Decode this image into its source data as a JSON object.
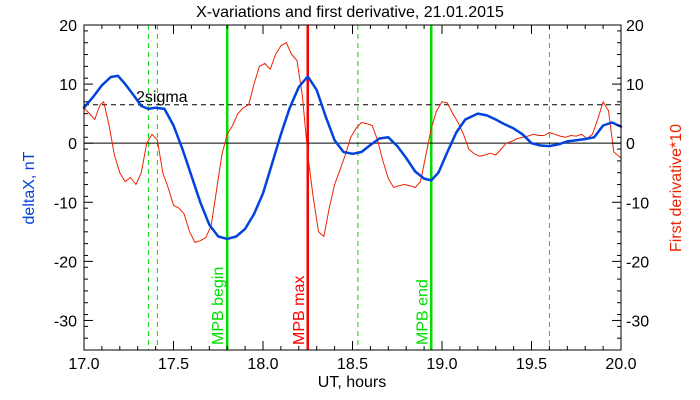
{
  "chart_data": {
    "type": "line",
    "title": "X-variations and first derivative, 21.01.2015",
    "xlabel": "UT, hours",
    "ylabel_left": "deltaX, nT",
    "ylabel_right": "First derivative*10",
    "xlim": [
      17.0,
      20.0
    ],
    "ylim": [
      -35,
      20
    ],
    "x_ticks": [
      17.0,
      17.5,
      18.0,
      18.5,
      19.0,
      19.5,
      20.0
    ],
    "x_tick_labels": [
      "17.0",
      "17.5",
      "18.0",
      "18.5",
      "19.0",
      "19.5",
      "20.0"
    ],
    "y_ticks": [
      20,
      10,
      0,
      -10,
      -20,
      -30
    ],
    "y_tick_labels": [
      "20",
      "10",
      "0",
      "-10",
      "-20",
      "-30"
    ],
    "grid": false,
    "threshold": {
      "label": "2sigma",
      "y": 6.5
    },
    "zero_line": 0,
    "markers": [
      {
        "label": "MPB begin",
        "x": 17.8,
        "color": "#00dd00",
        "style": "solid"
      },
      {
        "label": "MPB max",
        "x": 18.25,
        "color": "#ff0000",
        "style": "solid"
      },
      {
        "label": "MPB end",
        "x": 18.94,
        "color": "#00dd00",
        "style": "solid"
      }
    ],
    "dashed_markers": [
      {
        "x": 17.36,
        "color": "#00dd00"
      },
      {
        "x": 17.41,
        "color": "#00dd00"
      },
      {
        "x": 18.53,
        "color": "#00dd00"
      },
      {
        "x": 19.6,
        "color": "#00dd00"
      }
    ],
    "series": [
      {
        "name": "deltaX, nT",
        "color": "#0044dd",
        "x": [
          17.0,
          17.05,
          17.1,
          17.15,
          17.19,
          17.23,
          17.28,
          17.32,
          17.36,
          17.4,
          17.45,
          17.5,
          17.55,
          17.6,
          17.65,
          17.7,
          17.75,
          17.8,
          17.85,
          17.9,
          17.95,
          18.0,
          18.05,
          18.1,
          18.15,
          18.2,
          18.25,
          18.3,
          18.35,
          18.4,
          18.45,
          18.5,
          18.55,
          18.6,
          18.65,
          18.7,
          18.75,
          18.8,
          18.85,
          18.9,
          18.94,
          18.98,
          19.03,
          19.08,
          19.13,
          19.2,
          19.25,
          19.3,
          19.35,
          19.4,
          19.45,
          19.5,
          19.55,
          19.6,
          19.65,
          19.7,
          19.75,
          19.8,
          19.85,
          19.9,
          19.95,
          20.0
        ],
        "y": [
          6.0,
          7.8,
          9.8,
          11.2,
          11.4,
          10.0,
          8.0,
          6.3,
          5.8,
          6.0,
          5.8,
          3.0,
          -1.0,
          -5.5,
          -10.0,
          -13.8,
          -15.8,
          -16.2,
          -15.8,
          -14.5,
          -12.0,
          -8.5,
          -3.5,
          1.5,
          6.0,
          9.5,
          11.3,
          9.0,
          4.5,
          0.5,
          -1.5,
          -1.8,
          -1.5,
          -0.3,
          0.8,
          1.0,
          -0.5,
          -2.5,
          -4.8,
          -6.0,
          -6.3,
          -5.0,
          -1.5,
          1.8,
          4.0,
          5.0,
          4.7,
          4.0,
          3.2,
          2.5,
          1.5,
          0.0,
          -0.4,
          -0.5,
          -0.2,
          0.3,
          0.5,
          0.7,
          1.0,
          3.0,
          3.5,
          2.8
        ]
      },
      {
        "name": "First derivative*10",
        "color": "#ee2200",
        "x": [
          17.0,
          17.03,
          17.06,
          17.09,
          17.11,
          17.14,
          17.17,
          17.2,
          17.23,
          17.26,
          17.29,
          17.32,
          17.35,
          17.38,
          17.41,
          17.44,
          17.47,
          17.5,
          17.53,
          17.56,
          17.59,
          17.62,
          17.65,
          17.68,
          17.71,
          17.74,
          17.77,
          17.8,
          17.83,
          17.86,
          17.89,
          17.92,
          17.95,
          17.98,
          18.01,
          18.04,
          18.07,
          18.1,
          18.13,
          18.16,
          18.19,
          18.22,
          18.25,
          18.28,
          18.31,
          18.34,
          18.37,
          18.4,
          18.43,
          18.46,
          18.49,
          18.52,
          18.55,
          18.58,
          18.61,
          18.64,
          18.67,
          18.7,
          18.73,
          18.76,
          18.79,
          18.82,
          18.85,
          18.88,
          18.91,
          18.94,
          18.97,
          19.0,
          19.03,
          19.06,
          19.09,
          19.12,
          19.15,
          19.18,
          19.21,
          19.24,
          19.27,
          19.3,
          19.33,
          19.36,
          19.39,
          19.42,
          19.45,
          19.48,
          19.51,
          19.54,
          19.57,
          19.6,
          19.63,
          19.66,
          19.69,
          19.72,
          19.75,
          19.78,
          19.81,
          19.84,
          19.87,
          19.9,
          19.93,
          19.96,
          20.0
        ],
        "y": [
          6.0,
          5.0,
          4.0,
          6.5,
          7.0,
          3.0,
          -2.0,
          -5.0,
          -6.5,
          -5.8,
          -7.0,
          -5.0,
          0.0,
          1.5,
          0.5,
          -5.0,
          -7.5,
          -10.5,
          -11.0,
          -12.0,
          -15.0,
          -16.8,
          -16.5,
          -16.0,
          -14.0,
          -8.0,
          -2.0,
          1.5,
          3.0,
          5.0,
          6.0,
          6.5,
          10.0,
          13.0,
          13.5,
          12.5,
          15.0,
          16.5,
          17.0,
          15.0,
          14.0,
          8.0,
          -2.0,
          -9.0,
          -15.0,
          -15.8,
          -11.0,
          -7.0,
          -4.5,
          -2.0,
          1.0,
          2.5,
          3.5,
          3.3,
          3.0,
          0.5,
          -3.0,
          -6.0,
          -7.5,
          -7.2,
          -7.0,
          -7.2,
          -7.5,
          -6.5,
          -2.0,
          2.5,
          5.5,
          7.0,
          6.8,
          5.0,
          3.5,
          1.5,
          -1.0,
          -1.8,
          -2.2,
          -2.0,
          -1.7,
          -2.0,
          -1.0,
          0.0,
          0.3,
          0.8,
          1.0,
          1.2,
          1.5,
          1.3,
          1.3,
          1.8,
          1.5,
          1.2,
          1.0,
          1.3,
          1.2,
          1.5,
          0.8,
          1.5,
          4.0,
          7.0,
          5.5,
          -1.5,
          -2.5
        ]
      }
    ]
  }
}
